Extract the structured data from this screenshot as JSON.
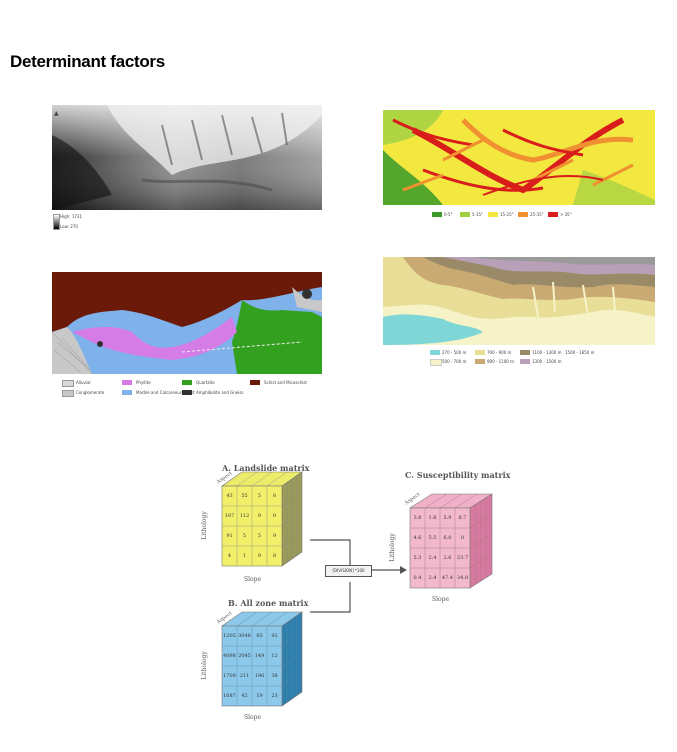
{
  "page": {
    "title": "Determinant factors"
  },
  "dem_map": {
    "legend_high": "High: 1731",
    "legend_low": "Low: 270"
  },
  "slope_map": {
    "legend": [
      "0-5°",
      "5-15°",
      "15-25°",
      "25-35°",
      "> 35°"
    ],
    "colors": [
      "#3a9a2a",
      "#9fd043",
      "#f2e840",
      "#f09030",
      "#d91c1c"
    ]
  },
  "litho_map": {
    "legend": [
      "Alluvial",
      "Phyllite",
      "Quartzite",
      "Schist and Micaschist",
      "Conglomerate",
      "Marble and Calcareous schist",
      "Amphibolite and Gneiss"
    ],
    "colors": [
      "#d8d8d8",
      "#d67ce6",
      "#33a020",
      "#6b1a0a",
      "#c8c8c8",
      "#7fb2ea",
      "#303030"
    ]
  },
  "elev_map": {
    "legend": [
      "270 - 500 m",
      "500 - 700 m",
      "700 - 900 m",
      "900 - 1100 m",
      "1100 - 1300 m",
      "1300 - 1500 m",
      "1500 - 1650 m"
    ],
    "colors": [
      "#7fd6d6",
      "#f6f3c8",
      "#e9de97",
      "#c9aa72",
      "#9a8a68",
      "#b7a0b8",
      "#9a9a9a"
    ]
  },
  "diagram": {
    "landslide_title": "A. Landslide matrix",
    "allzone_title": "B. All zone matrix",
    "suscept_title": "C. Susceptibility matrix",
    "operation_label": "[DIVISION] *100",
    "axis_slope": "Slope",
    "axis_lithology": "Lithology",
    "axis_aspect": "Aspect",
    "landslide_cells": [
      "43",
      "55",
      "5",
      "8",
      "187",
      "112",
      "9",
      "0",
      "91",
      "5",
      "5",
      "9",
      "4",
      "1",
      "9",
      "8"
    ],
    "allzone_cells": [
      "1205",
      "3048",
      "85",
      "92",
      "4098",
      "2045",
      "149",
      "12",
      "1709",
      "211",
      "196",
      "38",
      "1087",
      "42",
      "19",
      "23"
    ],
    "suscept_cells": [
      "3.6",
      "1.8",
      "5.9",
      "8.7",
      "4.6",
      "5.5",
      "6.0",
      "0",
      "5.3",
      "2.4",
      "2.6",
      "23.7",
      "0.4",
      "2.4",
      "47.4",
      "34.8"
    ]
  }
}
